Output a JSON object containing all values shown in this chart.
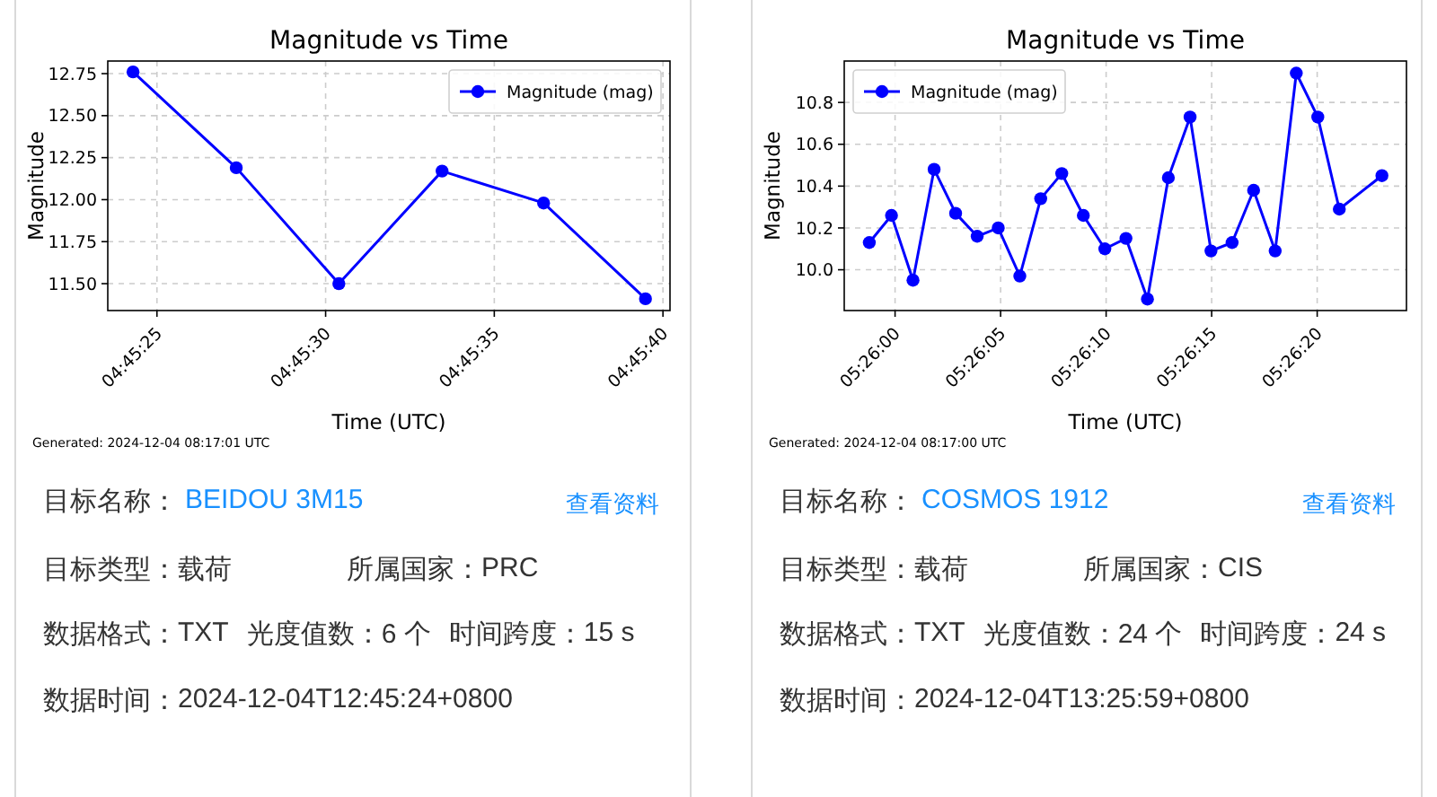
{
  "chart_data": [
    {
      "type": "line",
      "title": "Magnitude vs Time",
      "xlabel": "Time (UTC)",
      "ylabel": "Magnitude",
      "x": [
        4.756747,
        4.757597,
        4.758442,
        4.759292,
        4.760128,
        4.760967
      ],
      "series": [
        {
          "name": "Magnitude (mag)",
          "color": "#0000ff",
          "values": [
            12.76,
            12.19,
            11.5,
            12.17,
            11.98,
            11.41
          ]
        }
      ],
      "xlim": [
        4.756539,
        4.761169
      ],
      "xticks": [
        {
          "value": 4.756944,
          "label": "04:45:25"
        },
        {
          "value": 4.758333,
          "label": "04:45:30"
        },
        {
          "value": 4.759722,
          "label": "04:45:35"
        },
        {
          "value": 4.761111,
          "label": "04:45:40"
        }
      ],
      "ylim": [
        11.34,
        12.825
      ],
      "yticks": [
        {
          "value": 11.5,
          "label": "11.50"
        },
        11.75,
        {
          "value": 12,
          "label": "12.00"
        },
        12.25,
        {
          "value": 12.5,
          "label": "12.50"
        },
        12.75
      ],
      "grid": true,
      "legend": "top right",
      "marker": "circle",
      "line_style": "solid",
      "annotations": [
        "Generated: 2024-12-04 08:17:01 UTC"
      ]
    },
    {
      "type": "line",
      "title": "Magnitude vs Time",
      "xlabel": "Time (UTC)",
      "ylabel": "Magnitude",
      "x": [
        5.432994,
        5.433286,
        5.433569,
        5.433847,
        5.43413,
        5.434414,
        5.434691,
        5.434975,
        5.43525,
        5.435527,
        5.435811,
        5.436094,
        5.436372,
        5.436655,
        5.43693,
        5.437216,
        5.437491,
        5.437769,
        5.438052,
        5.438336,
        5.438614,
        5.438897,
        5.43918,
        5.439741
      ],
      "series": [
        {
          "name": "Magnitude (mag)",
          "color": "#0000ff",
          "values": [
            10.13,
            10.26,
            9.95,
            10.48,
            10.27,
            10.16,
            10.2,
            9.97,
            10.34,
            10.46,
            10.26,
            10.1,
            10.15,
            9.86,
            10.44,
            10.73,
            10.09,
            10.13,
            10.38,
            10.09,
            10.94,
            10.73,
            10.29,
            10.45
          ]
        }
      ],
      "xlim": [
        5.432664,
        5.440064
      ],
      "xticks": [
        {
          "value": 5.433333,
          "label": "05:26:00"
        },
        {
          "value": 5.434722,
          "label": "05:26:05"
        },
        {
          "value": 5.436111,
          "label": "05:26:10"
        },
        {
          "value": 5.4375,
          "label": "05:26:15"
        },
        {
          "value": 5.438889,
          "label": "05:26:20"
        }
      ],
      "ylim": [
        9.805,
        10.998
      ],
      "yticks": [
        {
          "value": 10,
          "label": "10.0"
        },
        10.2,
        10.4,
        10.6,
        10.8
      ],
      "grid": true,
      "legend": "top left",
      "marker": "circle",
      "line_style": "solid",
      "annotations": [
        "Generated: 2024-12-04 08:17:00 UTC"
      ]
    },
    {
      "type": "other",
      "annotations": [
        "目标名称：",
        "BEIDOU 3M15",
        "查看资料",
        "目标类型：",
        "载荷",
        "所属国家：",
        "PRC",
        "数据格式：",
        "TXT",
        "光度值数：",
        "6 个",
        "时间跨度：",
        "15 s",
        "数据时间：",
        "2024-12-04T12:45:24+0800"
      ]
    },
    {
      "type": "other",
      "annotations": [
        "目标名称：",
        "COSMOS 1912",
        "查看资料",
        "目标类型：",
        "载荷",
        "所属国家：",
        "CIS",
        "数据格式：",
        "TXT",
        "光度值数：",
        "24 个",
        "时间跨度：",
        "24 s",
        "数据时间：",
        "2024-12-04T13:25:59+0800"
      ]
    }
  ]
}
